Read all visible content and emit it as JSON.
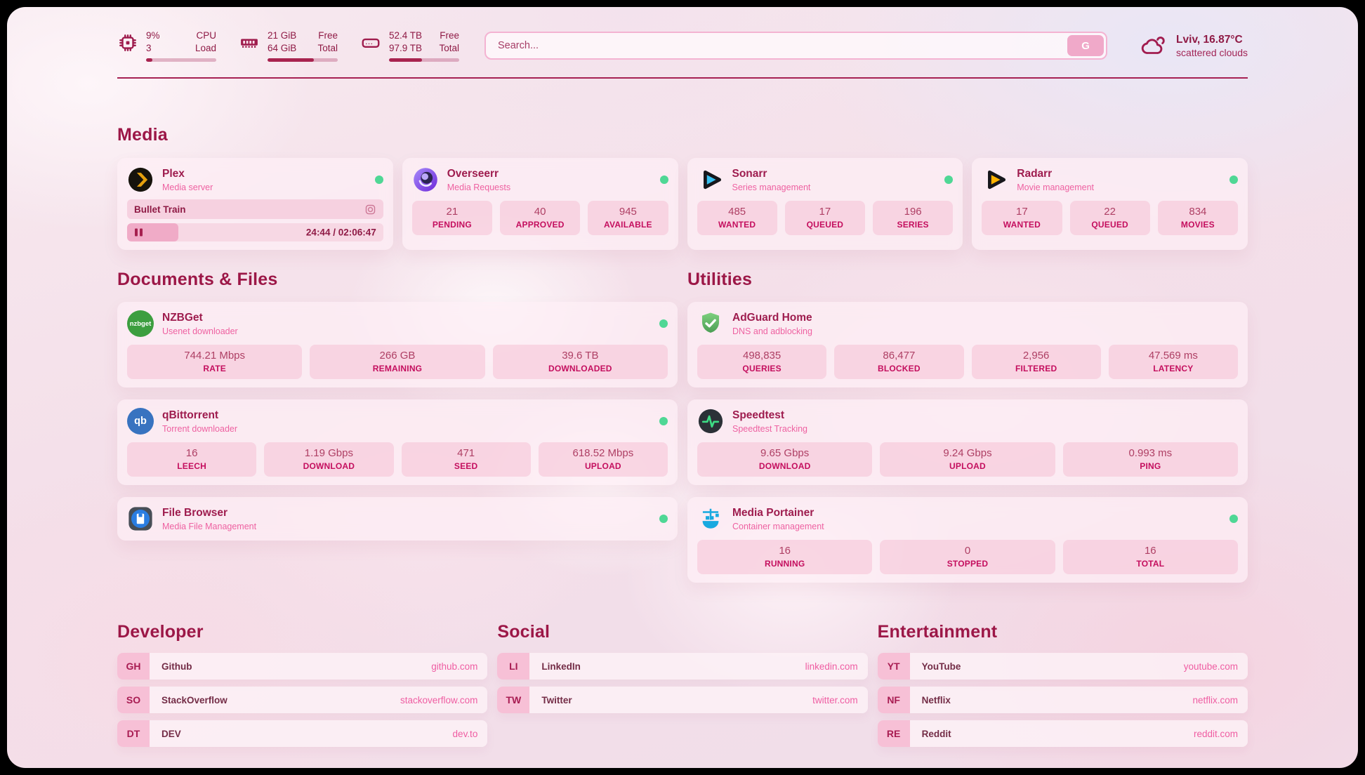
{
  "header": {
    "cpu": {
      "value_top": "9%",
      "value_bottom": "3",
      "label_top": "CPU",
      "label_bottom": "Load",
      "progress_pct": 9
    },
    "ram": {
      "value_top": "21 GiB",
      "value_bottom": "64 GiB",
      "label_top": "Free",
      "label_bottom": "Total",
      "progress_pct": 66
    },
    "disk": {
      "value_top": "52.4 TB",
      "value_bottom": "97.9 TB",
      "label_top": "Free",
      "label_bottom": "Total",
      "progress_pct": 47
    },
    "search": {
      "placeholder": "Search...",
      "button_label": "G"
    },
    "weather": {
      "location": "Lviv, 16.87°C",
      "condition": "scattered clouds"
    }
  },
  "media": {
    "title": "Media",
    "plex": {
      "name": "Plex",
      "subtitle": "Media server",
      "online": true,
      "now_playing": "Bullet Train",
      "time": "24:44 / 02:06:47",
      "progress_pct": 20
    },
    "overseerr": {
      "name": "Overseerr",
      "subtitle": "Media Requests",
      "online": true,
      "stats": [
        {
          "value": "21",
          "label": "PENDING"
        },
        {
          "value": "40",
          "label": "APPROVED"
        },
        {
          "value": "945",
          "label": "AVAILABLE"
        }
      ]
    },
    "sonarr": {
      "name": "Sonarr",
      "subtitle": "Series management",
      "online": true,
      "stats": [
        {
          "value": "485",
          "label": "WANTED"
        },
        {
          "value": "17",
          "label": "QUEUED"
        },
        {
          "value": "196",
          "label": "SERIES"
        }
      ]
    },
    "radarr": {
      "name": "Radarr",
      "subtitle": "Movie management",
      "online": true,
      "stats": [
        {
          "value": "17",
          "label": "WANTED"
        },
        {
          "value": "22",
          "label": "QUEUED"
        },
        {
          "value": "834",
          "label": "MOVIES"
        }
      ]
    }
  },
  "documents": {
    "title": "Documents & Files",
    "nzbget": {
      "name": "NZBGet",
      "subtitle": "Usenet downloader",
      "icon_text": "nzbget",
      "online": true,
      "stats": [
        {
          "value": "744.21 Mbps",
          "label": "RATE"
        },
        {
          "value": "266 GB",
          "label": "REMAINING"
        },
        {
          "value": "39.6 TB",
          "label": "DOWNLOADED"
        }
      ]
    },
    "qbittorrent": {
      "name": "qBittorrent",
      "subtitle": "Torrent downloader",
      "icon_text": "qb",
      "online": true,
      "stats": [
        {
          "value": "16",
          "label": "LEECH"
        },
        {
          "value": "1.19 Gbps",
          "label": "DOWNLOAD"
        },
        {
          "value": "471",
          "label": "SEED"
        },
        {
          "value": "618.52 Mbps",
          "label": "UPLOAD"
        }
      ]
    },
    "filebrowser": {
      "name": "File Browser",
      "subtitle": "Media File Management",
      "online": true
    }
  },
  "utilities": {
    "title": "Utilities",
    "adguard": {
      "name": "AdGuard Home",
      "subtitle": "DNS and adblocking",
      "online": false,
      "stats": [
        {
          "value": "498,835",
          "label": "QUERIES"
        },
        {
          "value": "86,477",
          "label": "BLOCKED"
        },
        {
          "value": "2,956",
          "label": "FILTERED"
        },
        {
          "value": "47.569 ms",
          "label": "LATENCY"
        }
      ]
    },
    "speedtest": {
      "name": "Speedtest",
      "subtitle": "Speedtest Tracking",
      "online": false,
      "stats": [
        {
          "value": "9.65 Gbps",
          "label": "DOWNLOAD"
        },
        {
          "value": "9.24 Gbps",
          "label": "UPLOAD"
        },
        {
          "value": "0.993 ms",
          "label": "PING"
        }
      ]
    },
    "portainer": {
      "name": "Media Portainer",
      "subtitle": "Container management",
      "online": true,
      "stats": [
        {
          "value": "16",
          "label": "RUNNING"
        },
        {
          "value": "0",
          "label": "STOPPED"
        },
        {
          "value": "16",
          "label": "TOTAL"
        }
      ]
    }
  },
  "bookmarks": {
    "developer": {
      "title": "Developer",
      "items": [
        {
          "abbr": "GH",
          "name": "Github",
          "url": "github.com"
        },
        {
          "abbr": "SO",
          "name": "StackOverflow",
          "url": "stackoverflow.com"
        },
        {
          "abbr": "DT",
          "name": "DEV",
          "url": "dev.to"
        }
      ]
    },
    "social": {
      "title": "Social",
      "items": [
        {
          "abbr": "LI",
          "name": "LinkedIn",
          "url": "linkedin.com"
        },
        {
          "abbr": "TW",
          "name": "Twitter",
          "url": "twitter.com"
        }
      ]
    },
    "entertainment": {
      "title": "Entertainment",
      "items": [
        {
          "abbr": "YT",
          "name": "YouTube",
          "url": "youtube.com"
        },
        {
          "abbr": "NF",
          "name": "Netflix",
          "url": "netflix.com"
        },
        {
          "abbr": "RE",
          "name": "Reddit",
          "url": "reddit.com"
        }
      ]
    }
  },
  "colors": {
    "accent": "#9e1c4e",
    "subtitle_pink": "#ee61a1",
    "link_pink": "#ef5da2",
    "online_green": "#4fd795",
    "divider": "#a62153"
  }
}
